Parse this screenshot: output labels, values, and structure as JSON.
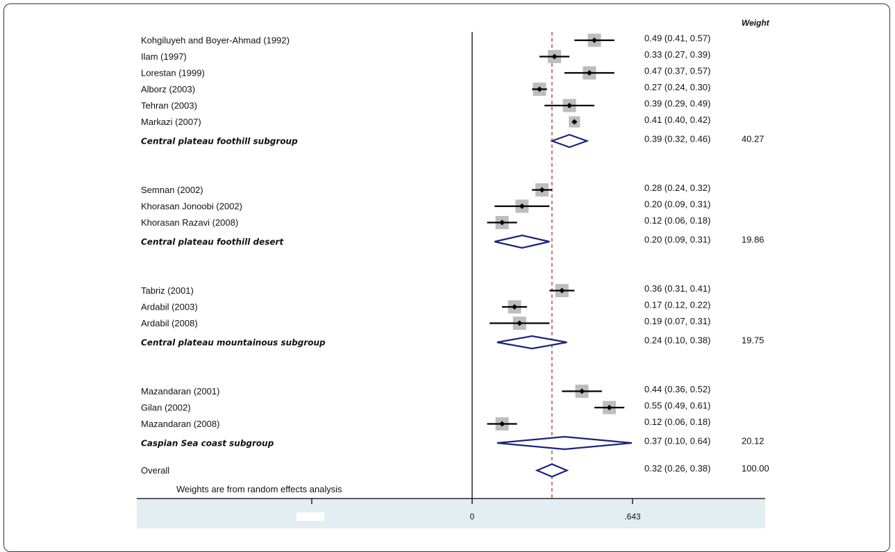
{
  "chart_data": {
    "type": "forest",
    "weight_header": "Weight",
    "footnote": "Weights are from random effects analysis",
    "x_ticks": [
      {
        "value": 0,
        "label": "0"
      },
      {
        "value": 0.643,
        "label": ".643"
      }
    ],
    "xlim": [
      -0.643,
      1.0
    ],
    "reference_line": 0.32,
    "rows": [
      {
        "kind": "study",
        "label": "Kohgiluyeh and Boyer-Ahmad (1992)",
        "est": 0.49,
        "lo": 0.41,
        "hi": 0.57,
        "text": "0.49 (0.41, 0.57)",
        "size": 1.0
      },
      {
        "kind": "study",
        "label": "Ilam (1997)",
        "est": 0.33,
        "lo": 0.27,
        "hi": 0.39,
        "text": "0.33 (0.27, 0.39)",
        "size": 1.0
      },
      {
        "kind": "study",
        "label": "Lorestan (1999)",
        "est": 0.47,
        "lo": 0.37,
        "hi": 0.57,
        "text": "0.47 (0.37, 0.57)",
        "size": 1.0
      },
      {
        "kind": "study",
        "label": "Alborz (2003)",
        "est": 0.27,
        "lo": 0.24,
        "hi": 0.3,
        "text": "0.27 (0.24, 0.30)",
        "size": 1.0
      },
      {
        "kind": "study",
        "label": "Tehran (2003)",
        "est": 0.39,
        "lo": 0.29,
        "hi": 0.49,
        "text": "0.39 (0.29, 0.49)",
        "size": 1.0
      },
      {
        "kind": "study",
        "label": "Markazi (2007)",
        "est": 0.41,
        "lo": 0.4,
        "hi": 0.42,
        "text": "0.41 (0.40, 0.42)",
        "size": 0.85
      },
      {
        "kind": "subgroup",
        "label": "Central plateau foothill subgroup",
        "est": 0.39,
        "lo": 0.32,
        "hi": 0.46,
        "text": "0.39 (0.32, 0.46)",
        "weight": "40.27"
      },
      {
        "kind": "gap"
      },
      {
        "kind": "study",
        "label": "Semnan (2002)",
        "est": 0.28,
        "lo": 0.24,
        "hi": 0.32,
        "text": "0.28 (0.24, 0.32)",
        "size": 1.0
      },
      {
        "kind": "study",
        "label": "Khorasan Jonoobi (2002)",
        "est": 0.2,
        "lo": 0.09,
        "hi": 0.31,
        "text": "0.20 (0.09, 0.31)",
        "size": 1.0
      },
      {
        "kind": "study",
        "label": "Khorasan Razavi (2008)",
        "est": 0.12,
        "lo": 0.06,
        "hi": 0.18,
        "text": "0.12 (0.06, 0.18)",
        "size": 1.0
      },
      {
        "kind": "subgroup",
        "label": "Central plateau foothill desert",
        "est": 0.2,
        "lo": 0.09,
        "hi": 0.31,
        "text": "0.20 (0.09, 0.31)",
        "weight": "19.86"
      },
      {
        "kind": "gap"
      },
      {
        "kind": "study",
        "label": "Tabriz (2001)",
        "est": 0.36,
        "lo": 0.31,
        "hi": 0.41,
        "text": "0.36 (0.31, 0.41)",
        "size": 1.0
      },
      {
        "kind": "study",
        "label": "Ardabil (2003)",
        "est": 0.17,
        "lo": 0.12,
        "hi": 0.22,
        "text": "0.17 (0.12, 0.22)",
        "size": 1.0
      },
      {
        "kind": "study",
        "label": "Ardabil (2008)",
        "est": 0.19,
        "lo": 0.07,
        "hi": 0.31,
        "text": "0.19 (0.07, 0.31)",
        "size": 1.0
      },
      {
        "kind": "subgroup",
        "label": "Central plateau mountainous subgroup",
        "est": 0.24,
        "lo": 0.1,
        "hi": 0.38,
        "text": "0.24 (0.10, 0.38)",
        "weight": "19.75"
      },
      {
        "kind": "gap"
      },
      {
        "kind": "study",
        "label": "Mazandaran (2001)",
        "est": 0.44,
        "lo": 0.36,
        "hi": 0.52,
        "text": "0.44 (0.36, 0.52)",
        "size": 1.0
      },
      {
        "kind": "study",
        "label": "Gilan (2002)",
        "est": 0.55,
        "lo": 0.49,
        "hi": 0.61,
        "text": "0.55 (0.49, 0.61)",
        "size": 1.0
      },
      {
        "kind": "study",
        "label": "Mazandaran (2008)",
        "est": 0.12,
        "lo": 0.06,
        "hi": 0.18,
        "text": "0.12 (0.06, 0.18)",
        "size": 1.0
      },
      {
        "kind": "subgroup",
        "label": "Caspian Sea coast subgroup",
        "est": 0.37,
        "lo": 0.1,
        "hi": 0.64,
        "text": "0.37 (0.10, 0.64)",
        "weight": "20.12"
      },
      {
        "kind": "overall",
        "label": "Overall",
        "est": 0.32,
        "lo": 0.26,
        "hi": 0.38,
        "text": "0.32 (0.26, 0.38)",
        "weight": "100.00"
      }
    ],
    "colors": {
      "ci_line": "#000000",
      "box_fill": "#bdbdbd",
      "diamond": "#1a237e",
      "ref_line": "#b03030",
      "axis_band": "#e3eef2"
    }
  }
}
